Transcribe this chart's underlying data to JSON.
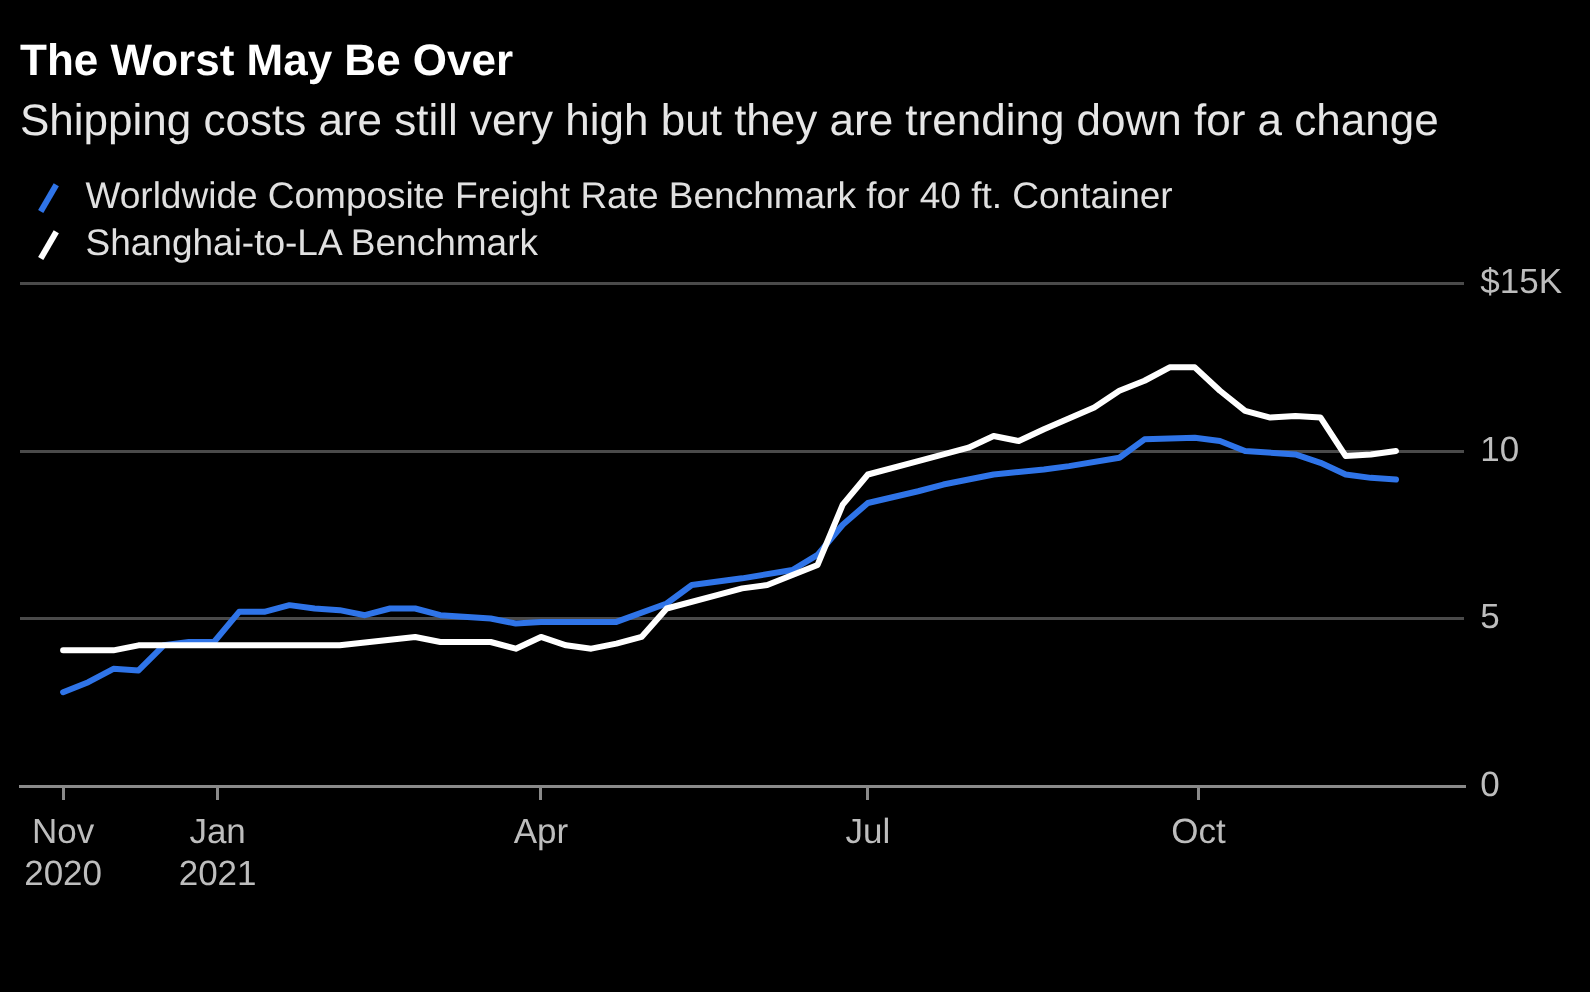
{
  "chart_data": {
    "type": "line",
    "title": "The Worst May Be Over",
    "subtitle": "Shipping costs are still very high but they are trending down for a change",
    "series": [
      {
        "name": "Worldwide Composite Freight Rate Benchmark for 40 ft. Container",
        "color": "#2f74e8",
        "x": [
          "2020-11-19",
          "2020-11-26",
          "2020-12-03",
          "2020-12-10",
          "2020-12-17",
          "2020-12-24",
          "2020-12-31",
          "2021-01-07",
          "2021-01-14",
          "2021-01-21",
          "2021-01-28",
          "2021-02-04",
          "2021-02-11",
          "2021-02-18",
          "2021-02-25",
          "2021-03-04",
          "2021-03-18",
          "2021-03-25",
          "2021-04-01",
          "2021-04-15",
          "2021-04-22",
          "2021-05-06",
          "2021-05-13",
          "2021-05-27",
          "2021-06-10",
          "2021-06-17",
          "2021-06-24",
          "2021-07-01",
          "2021-07-15",
          "2021-07-22",
          "2021-08-05",
          "2021-08-19",
          "2021-08-26",
          "2021-09-09",
          "2021-09-16",
          "2021-09-30",
          "2021-10-07",
          "2021-10-14",
          "2021-10-28",
          "2021-11-04",
          "2021-11-11",
          "2021-11-18",
          "2021-11-25"
        ],
        "values": [
          2.8,
          3.1,
          3.5,
          3.45,
          4.2,
          4.3,
          4.3,
          5.2,
          5.2,
          5.4,
          5.3,
          5.25,
          5.1,
          5.3,
          5.3,
          5.1,
          5.0,
          4.85,
          4.9,
          4.9,
          4.9,
          5.45,
          6.0,
          6.2,
          6.45,
          6.9,
          7.8,
          8.45,
          8.8,
          9.0,
          9.3,
          9.45,
          9.55,
          9.8,
          10.35,
          10.4,
          10.3,
          10.0,
          9.9,
          9.65,
          9.3,
          9.2,
          9.15
        ]
      },
      {
        "name": "Shanghai-to-LA Benchmark",
        "color": "#ffffff",
        "x": [
          "2020-11-19",
          "2020-12-03",
          "2020-12-10",
          "2021-02-04",
          "2021-02-25",
          "2021-03-04",
          "2021-03-18",
          "2021-03-25",
          "2021-04-01",
          "2021-04-08",
          "2021-04-15",
          "2021-04-22",
          "2021-04-29",
          "2021-05-06",
          "2021-05-20",
          "2021-05-27",
          "2021-06-03",
          "2021-06-10",
          "2021-06-17",
          "2021-06-24",
          "2021-07-01",
          "2021-07-15",
          "2021-07-29",
          "2021-08-05",
          "2021-08-12",
          "2021-08-19",
          "2021-09-02",
          "2021-09-09",
          "2021-09-16",
          "2021-09-23",
          "2021-09-30",
          "2021-10-07",
          "2021-10-14",
          "2021-10-21",
          "2021-10-28",
          "2021-11-04",
          "2021-11-11",
          "2021-11-18",
          "2021-11-25"
        ],
        "values": [
          4.05,
          4.05,
          4.2,
          4.2,
          4.45,
          4.3,
          4.3,
          4.1,
          4.45,
          4.2,
          4.1,
          4.25,
          4.45,
          5.3,
          5.7,
          5.9,
          6.0,
          6.3,
          6.6,
          8.4,
          9.3,
          9.7,
          10.1,
          10.45,
          10.3,
          10.65,
          11.3,
          11.8,
          12.1,
          12.5,
          12.5,
          11.8,
          11.2,
          11.0,
          11.05,
          11.0,
          9.85,
          9.9,
          10.0
        ]
      }
    ],
    "xlim": [
      "2020-11-07",
      "2021-12-14"
    ],
    "xticks": [
      {
        "value": "2020-11-19",
        "label": "Nov 2020"
      },
      {
        "value": "2021-01-01",
        "label": "Jan 2021"
      },
      {
        "value": "2021-04-01",
        "label": "Apr"
      },
      {
        "value": "2021-07-01",
        "label": "Jul"
      },
      {
        "value": "2021-10-01",
        "label": "Oct"
      }
    ],
    "ylim": [
      0,
      15
    ],
    "yticks": [
      0,
      5,
      10,
      {
        "value": 15,
        "label": "$15K"
      }
    ],
    "grid": "y",
    "legend": "top left",
    "marker": "none"
  }
}
